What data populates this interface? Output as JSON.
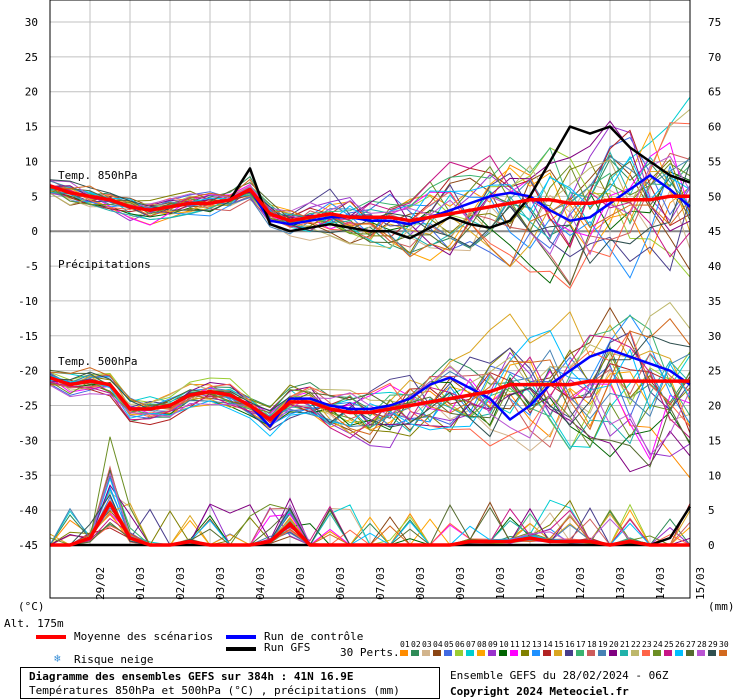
{
  "chart_data": {
    "type": "line",
    "title": "Diagramme des ensembles GEFS sur 384h : 41N 16.9E",
    "subtitle": "Températures 850hPa et 500hPa (°C) , précipitations (mm)",
    "ylabel_left": "(°C)",
    "ylabel_right": "(mm)",
    "ylim_left": [
      -45,
      30
    ],
    "ylim_right": [
      0,
      75
    ],
    "yticks_left": [
      30,
      25,
      20,
      15,
      10,
      5,
      0,
      -5,
      -10,
      -15,
      -20,
      -25,
      -30,
      -35,
      -40,
      -45
    ],
    "yticks_right": [
      75,
      70,
      65,
      60,
      55,
      50,
      45,
      40,
      35,
      30,
      25,
      20,
      15,
      10,
      5,
      0
    ],
    "x_dates": [
      "29/02",
      "01/03",
      "02/03",
      "03/03",
      "04/03",
      "05/03",
      "06/03",
      "07/03",
      "08/03",
      "09/03",
      "10/03",
      "11/03",
      "12/03",
      "13/03",
      "14/03",
      "15/03"
    ],
    "x_hours_range": [
      0,
      384
    ],
    "grid": true,
    "section_labels": {
      "t850": "Temp. 850hPa",
      "precip": "Précipitations",
      "t500": "Temp. 500hPa"
    },
    "mean_t850": {
      "x": [
        0,
        12,
        24,
        36,
        48,
        60,
        72,
        84,
        96,
        108,
        120,
        132,
        144,
        156,
        168,
        180,
        192,
        204,
        216,
        228,
        240,
        252,
        264,
        276,
        288,
        300,
        312,
        324,
        336,
        348,
        360,
        372,
        384
      ],
      "y": [
        6.5,
        5.5,
        5.0,
        4.5,
        3.5,
        3.0,
        3.5,
        4.0,
        4.0,
        4.5,
        6.0,
        2.5,
        1.5,
        2.0,
        2.5,
        2.0,
        2.0,
        2.0,
        1.5,
        2.0,
        2.5,
        3.0,
        3.5,
        4.0,
        4.5,
        4.5,
        4.0,
        4.0,
        4.5,
        4.5,
        4.5,
        5.0,
        5.0
      ]
    },
    "mean_t500": {
      "x": [
        0,
        12,
        24,
        36,
        48,
        60,
        72,
        84,
        96,
        108,
        120,
        132,
        144,
        156,
        168,
        180,
        192,
        204,
        216,
        228,
        240,
        252,
        264,
        276,
        288,
        300,
        312,
        324,
        336,
        348,
        360,
        372,
        384
      ],
      "y": [
        -21,
        -22,
        -21.5,
        -22,
        -25.5,
        -25.5,
        -25,
        -23.5,
        -23,
        -23.5,
        -25,
        -27,
        -24.5,
        -24.5,
        -25.5,
        -26,
        -26,
        -25.5,
        -25,
        -24.5,
        -24,
        -23.5,
        -23,
        -22,
        -22,
        -22,
        -22,
        -21.5,
        -21.5,
        -21.5,
        -21.5,
        -21.5,
        -21.5
      ]
    },
    "mean_precip": {
      "x": [
        0,
        12,
        24,
        36,
        48,
        60,
        72,
        84,
        96,
        108,
        120,
        132,
        144,
        156,
        168,
        180,
        192,
        204,
        216,
        228,
        240,
        252,
        264,
        276,
        288,
        300,
        312,
        324,
        336,
        348,
        360,
        372,
        384
      ],
      "y": [
        0,
        0,
        1,
        6,
        1,
        0,
        0,
        0.5,
        0,
        0,
        0,
        0.5,
        3,
        0,
        0,
        0,
        0,
        0,
        0,
        0,
        0,
        0.5,
        0.5,
        0.5,
        1,
        0.5,
        0.5,
        0.5,
        0,
        0.5,
        0,
        0,
        0
      ]
    },
    "gfs_t850": {
      "x": [
        0,
        12,
        24,
        36,
        48,
        60,
        72,
        84,
        96,
        108,
        120,
        132,
        144,
        156,
        168,
        180,
        192,
        204,
        216,
        228,
        240,
        252,
        264,
        276,
        288,
        300,
        312,
        324,
        336,
        348,
        360,
        372,
        384
      ],
      "y": [
        6.5,
        5.5,
        5,
        4.5,
        3.5,
        3,
        3.5,
        4,
        4,
        4.5,
        9,
        1,
        0,
        0.5,
        1,
        0.5,
        0,
        0,
        -1,
        0.5,
        2,
        1,
        0.5,
        1.5,
        5,
        10,
        15,
        14,
        15,
        12,
        10,
        8,
        7
      ]
    },
    "gfs_precip": {
      "x": [
        0,
        12,
        24,
        36,
        48,
        60,
        72,
        84,
        96,
        108,
        120,
        132,
        144,
        156,
        168,
        180,
        192,
        204,
        216,
        228,
        240,
        252,
        264,
        276,
        288,
        300,
        312,
        324,
        336,
        348,
        360,
        372,
        384
      ],
      "y": [
        0,
        0,
        0,
        0,
        0,
        0,
        0,
        0,
        0,
        0,
        0,
        0,
        0,
        0,
        0,
        0,
        0,
        0,
        0,
        0,
        0,
        0,
        0,
        0,
        0,
        0,
        0,
        0,
        0,
        0,
        0,
        1,
        5.5
      ]
    },
    "control_t850": {
      "x": [
        0,
        12,
        24,
        36,
        48,
        60,
        72,
        84,
        96,
        108,
        120,
        132,
        144,
        156,
        168,
        180,
        192,
        204,
        216,
        228,
        240,
        252,
        264,
        276,
        288,
        300,
        312,
        324,
        336,
        348,
        360,
        372,
        384
      ],
      "y": [
        6.5,
        5.5,
        5,
        4.5,
        3.5,
        3,
        3.5,
        4,
        4,
        4.5,
        6,
        1.5,
        1,
        1.5,
        2,
        2,
        1.5,
        1.5,
        1,
        2,
        3,
        4,
        5,
        5.5,
        5,
        3,
        1.5,
        2,
        4,
        6,
        8,
        6,
        3.5
      ]
    },
    "control_t500": {
      "x": [
        0,
        12,
        24,
        36,
        48,
        60,
        72,
        84,
        96,
        108,
        120,
        132,
        144,
        156,
        168,
        180,
        192,
        204,
        216,
        228,
        240,
        252,
        264,
        276,
        288,
        300,
        312,
        324,
        336,
        348,
        360,
        372,
        384
      ],
      "y": [
        -21,
        -22,
        -21.5,
        -22,
        -25.5,
        -25.5,
        -25,
        -23.5,
        -23,
        -23.5,
        -25,
        -28,
        -24,
        -24,
        -25,
        -25.5,
        -25.5,
        -25,
        -24,
        -22,
        -21,
        -22.5,
        -24,
        -27,
        -25,
        -22,
        -20,
        -18,
        -17,
        -18,
        -19,
        -20,
        -22
      ]
    }
  },
  "labels": {
    "alt": "Alt. 175m",
    "mean": "Moyenne des scénarios",
    "control": "Run de contrôle",
    "gfs": "Run GFS",
    "snow": "Risque neige",
    "snow_icon": "snowflake-icon",
    "perts": "30 Perts.",
    "pert_numbers": [
      "01",
      "02",
      "03",
      "04",
      "05",
      "06",
      "07",
      "08",
      "09",
      "10",
      "11",
      "12",
      "13",
      "14",
      "15",
      "16",
      "17",
      "18",
      "19",
      "20",
      "21",
      "22",
      "23",
      "24",
      "25",
      "26",
      "27",
      "28",
      "29",
      "30"
    ],
    "run": "Ensemble GEFS du 28/02/2024 - 06Z",
    "copyright": "Copyright 2024 Meteociel.fr"
  },
  "colors": {
    "mean": "#ff0000",
    "control": "#0000ff",
    "gfs": "#000000",
    "grid": "#c0c0c0",
    "perts": [
      "#ff8c00",
      "#2e8b57",
      "#d2b48c",
      "#8b4513",
      "#4169e1",
      "#9acd32",
      "#00ced1",
      "#ffa500",
      "#9932cc",
      "#006400",
      "#ff00ff",
      "#808000",
      "#1e90ff",
      "#b22222",
      "#daa520",
      "#483d8b",
      "#3cb371",
      "#cd5c5c",
      "#4682b4",
      "#800080",
      "#20b2aa",
      "#bdb76b",
      "#ff6347",
      "#6b8e23",
      "#c71585",
      "#00bfff",
      "#556b2f",
      "#ba55d3",
      "#2f4f4f",
      "#d2691e"
    ]
  }
}
